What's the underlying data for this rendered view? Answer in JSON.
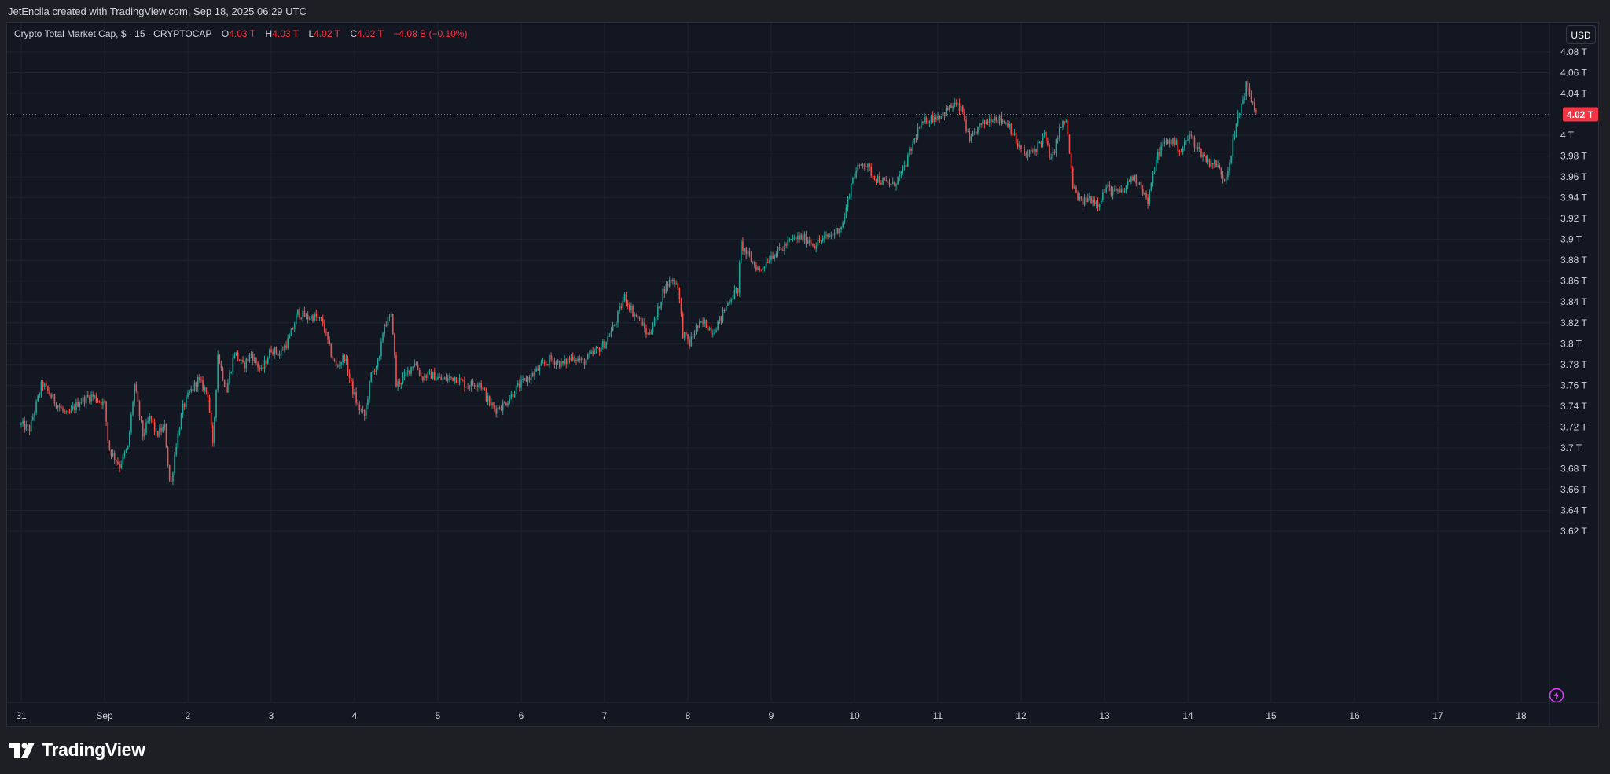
{
  "header": {
    "credit": "JetEncila created with TradingView.com, Sep 18, 2025 06:29 UTC"
  },
  "legend": {
    "symbol": "Crypto Total Market Cap, $ · 15 · CRYPTOCAP",
    "o_label": "O",
    "o_value": "4.03 T",
    "h_label": "H",
    "h_value": "4.03 T",
    "l_label": "L",
    "l_value": "4.02 T",
    "c_label": "C",
    "c_value": "4.02 T",
    "change": "−4.08 B (−0.10%)"
  },
  "currency_button": "USD",
  "colors": {
    "background": "#131722",
    "up": "#26a69a",
    "down": "#ef5350",
    "grid": "#1f2330",
    "price_line": "#f23645"
  },
  "icons": {
    "bolt": "lightning-bolt-icon",
    "logo": "tradingview-logo-icon"
  },
  "footer": {
    "brand": "TradingView"
  },
  "chart_data": {
    "type": "candlestick",
    "title": "Crypto Total Market Cap, $ · 15 · CRYPTOCAP",
    "interval": "15",
    "y_unit": "T",
    "ylim": [
      3.61,
      4.09
    ],
    "y_ticks": [
      "4.08 T",
      "4.06 T",
      "4.04 T",
      "4 T",
      "3.98 T",
      "3.96 T",
      "3.94 T",
      "3.92 T",
      "3.9 T",
      "3.88 T",
      "3.86 T",
      "3.84 T",
      "3.82 T",
      "3.8 T",
      "3.78 T",
      "3.76 T",
      "3.74 T",
      "3.72 T",
      "3.7 T",
      "3.68 T",
      "3.66 T",
      "3.64 T",
      "3.62 T"
    ],
    "x_ticks": [
      "31",
      "Sep",
      "2",
      "3",
      "4",
      "5",
      "6",
      "7",
      "8",
      "9",
      "10",
      "11",
      "12",
      "13",
      "14",
      "15",
      "16",
      "17",
      "18"
    ],
    "current_price": 4.02,
    "current_price_label": "4.02 T",
    "grid": true,
    "anchors": [
      {
        "d": 0.0,
        "v": 3.722
      },
      {
        "d": 0.1,
        "v": 3.718
      },
      {
        "d": 0.25,
        "v": 3.762
      },
      {
        "d": 0.4,
        "v": 3.745
      },
      {
        "d": 0.55,
        "v": 3.73
      },
      {
        "d": 0.7,
        "v": 3.745
      },
      {
        "d": 0.85,
        "v": 3.75
      },
      {
        "d": 1.0,
        "v": 3.742
      },
      {
        "d": 1.05,
        "v": 3.7
      },
      {
        "d": 1.18,
        "v": 3.683
      },
      {
        "d": 1.28,
        "v": 3.7
      },
      {
        "d": 1.36,
        "v": 3.76
      },
      {
        "d": 1.46,
        "v": 3.712
      },
      {
        "d": 1.55,
        "v": 3.73
      },
      {
        "d": 1.62,
        "v": 3.712
      },
      {
        "d": 1.72,
        "v": 3.72
      },
      {
        "d": 1.79,
        "v": 3.66
      },
      {
        "d": 1.85,
        "v": 3.7
      },
      {
        "d": 1.94,
        "v": 3.738
      },
      {
        "d": 2.02,
        "v": 3.752
      },
      {
        "d": 2.12,
        "v": 3.765
      },
      {
        "d": 2.24,
        "v": 3.752
      },
      {
        "d": 2.3,
        "v": 3.7
      },
      {
        "d": 2.36,
        "v": 3.79
      },
      {
        "d": 2.46,
        "v": 3.755
      },
      {
        "d": 2.56,
        "v": 3.792
      },
      {
        "d": 2.66,
        "v": 3.778
      },
      {
        "d": 2.76,
        "v": 3.79
      },
      {
        "d": 2.88,
        "v": 3.773
      },
      {
        "d": 3.0,
        "v": 3.795
      },
      {
        "d": 3.1,
        "v": 3.79
      },
      {
        "d": 3.22,
        "v": 3.805
      },
      {
        "d": 3.32,
        "v": 3.83
      },
      {
        "d": 3.42,
        "v": 3.825
      },
      {
        "d": 3.52,
        "v": 3.826
      },
      {
        "d": 3.62,
        "v": 3.82
      },
      {
        "d": 3.7,
        "v": 3.795
      },
      {
        "d": 3.78,
        "v": 3.777
      },
      {
        "d": 3.88,
        "v": 3.788
      },
      {
        "d": 3.96,
        "v": 3.76
      },
      {
        "d": 4.04,
        "v": 3.74
      },
      {
        "d": 4.12,
        "v": 3.73
      },
      {
        "d": 4.2,
        "v": 3.77
      },
      {
        "d": 4.3,
        "v": 3.785
      },
      {
        "d": 4.35,
        "v": 3.818
      },
      {
        "d": 4.45,
        "v": 3.826
      },
      {
        "d": 4.5,
        "v": 3.76
      },
      {
        "d": 4.62,
        "v": 3.77
      },
      {
        "d": 4.72,
        "v": 3.783
      },
      {
        "d": 4.8,
        "v": 3.768
      },
      {
        "d": 4.92,
        "v": 3.77
      },
      {
        "d": 5.05,
        "v": 3.765
      },
      {
        "d": 5.2,
        "v": 3.768
      },
      {
        "d": 5.35,
        "v": 3.76
      },
      {
        "d": 5.5,
        "v": 3.763
      },
      {
        "d": 5.62,
        "v": 3.742
      },
      {
        "d": 5.7,
        "v": 3.737
      },
      {
        "d": 5.8,
        "v": 3.742
      },
      {
        "d": 5.92,
        "v": 3.755
      },
      {
        "d": 6.05,
        "v": 3.765
      },
      {
        "d": 6.2,
        "v": 3.775
      },
      {
        "d": 6.35,
        "v": 3.785
      },
      {
        "d": 6.5,
        "v": 3.78
      },
      {
        "d": 6.62,
        "v": 3.788
      },
      {
        "d": 6.74,
        "v": 3.782
      },
      {
        "d": 6.86,
        "v": 3.79
      },
      {
        "d": 7.0,
        "v": 3.8
      },
      {
        "d": 7.12,
        "v": 3.818
      },
      {
        "d": 7.24,
        "v": 3.845
      },
      {
        "d": 7.34,
        "v": 3.83
      },
      {
        "d": 7.44,
        "v": 3.82
      },
      {
        "d": 7.52,
        "v": 3.808
      },
      {
        "d": 7.62,
        "v": 3.825
      },
      {
        "d": 7.7,
        "v": 3.85
      },
      {
        "d": 7.8,
        "v": 3.862
      },
      {
        "d": 7.88,
        "v": 3.857
      },
      {
        "d": 7.94,
        "v": 3.81
      },
      {
        "d": 8.02,
        "v": 3.8
      },
      {
        "d": 8.1,
        "v": 3.815
      },
      {
        "d": 8.2,
        "v": 3.82
      },
      {
        "d": 8.3,
        "v": 3.812
      },
      {
        "d": 8.4,
        "v": 3.825
      },
      {
        "d": 8.5,
        "v": 3.843
      },
      {
        "d": 8.6,
        "v": 3.852
      },
      {
        "d": 8.64,
        "v": 3.895
      },
      {
        "d": 8.74,
        "v": 3.882
      },
      {
        "d": 8.86,
        "v": 3.87
      },
      {
        "d": 9.0,
        "v": 3.885
      },
      {
        "d": 9.12,
        "v": 3.89
      },
      {
        "d": 9.22,
        "v": 3.898
      },
      {
        "d": 9.34,
        "v": 3.902
      },
      {
        "d": 9.44,
        "v": 3.9
      },
      {
        "d": 9.52,
        "v": 3.895
      },
      {
        "d": 9.62,
        "v": 3.9
      },
      {
        "d": 9.74,
        "v": 3.905
      },
      {
        "d": 9.86,
        "v": 3.915
      },
      {
        "d": 9.98,
        "v": 3.96
      },
      {
        "d": 10.1,
        "v": 3.975
      },
      {
        "d": 10.22,
        "v": 3.962
      },
      {
        "d": 10.34,
        "v": 3.955
      },
      {
        "d": 10.46,
        "v": 3.952
      },
      {
        "d": 10.58,
        "v": 3.965
      },
      {
        "d": 10.66,
        "v": 3.982
      },
      {
        "d": 10.76,
        "v": 4.005
      },
      {
        "d": 10.86,
        "v": 4.015
      },
      {
        "d": 10.98,
        "v": 4.018
      },
      {
        "d": 11.08,
        "v": 4.022
      },
      {
        "d": 11.2,
        "v": 4.03
      },
      {
        "d": 11.3,
        "v": 4.022
      },
      {
        "d": 11.38,
        "v": 3.992
      },
      {
        "d": 11.46,
        "v": 4.005
      },
      {
        "d": 11.56,
        "v": 4.012
      },
      {
        "d": 11.66,
        "v": 4.018
      },
      {
        "d": 11.76,
        "v": 4.015
      },
      {
        "d": 11.86,
        "v": 4.01
      },
      {
        "d": 11.96,
        "v": 3.99
      },
      {
        "d": 12.06,
        "v": 3.98
      },
      {
        "d": 12.18,
        "v": 3.988
      },
      {
        "d": 12.28,
        "v": 4.0
      },
      {
        "d": 12.36,
        "v": 3.975
      },
      {
        "d": 12.46,
        "v": 4.005
      },
      {
        "d": 12.54,
        "v": 4.015
      },
      {
        "d": 12.62,
        "v": 3.95
      },
      {
        "d": 12.72,
        "v": 3.935
      },
      {
        "d": 12.82,
        "v": 3.94
      },
      {
        "d": 12.92,
        "v": 3.935
      },
      {
        "d": 13.02,
        "v": 3.95
      },
      {
        "d": 13.12,
        "v": 3.945
      },
      {
        "d": 13.22,
        "v": 3.945
      },
      {
        "d": 13.32,
        "v": 3.96
      },
      {
        "d": 13.42,
        "v": 3.955
      },
      {
        "d": 13.52,
        "v": 3.935
      },
      {
        "d": 13.62,
        "v": 3.978
      },
      {
        "d": 13.72,
        "v": 3.993
      },
      {
        "d": 13.82,
        "v": 3.995
      },
      {
        "d": 13.92,
        "v": 3.985
      },
      {
        "d": 14.02,
        "v": 4.0
      },
      {
        "d": 14.14,
        "v": 3.985
      },
      {
        "d": 14.24,
        "v": 3.975
      },
      {
        "d": 14.34,
        "v": 3.972
      },
      {
        "d": 14.44,
        "v": 3.958
      },
      {
        "d": 14.5,
        "v": 3.975
      },
      {
        "d": 14.58,
        "v": 4.01
      },
      {
        "d": 14.7,
        "v": 4.048
      },
      {
        "d": 14.78,
        "v": 4.03
      },
      {
        "d": 14.83,
        "v": 4.022
      }
    ]
  }
}
